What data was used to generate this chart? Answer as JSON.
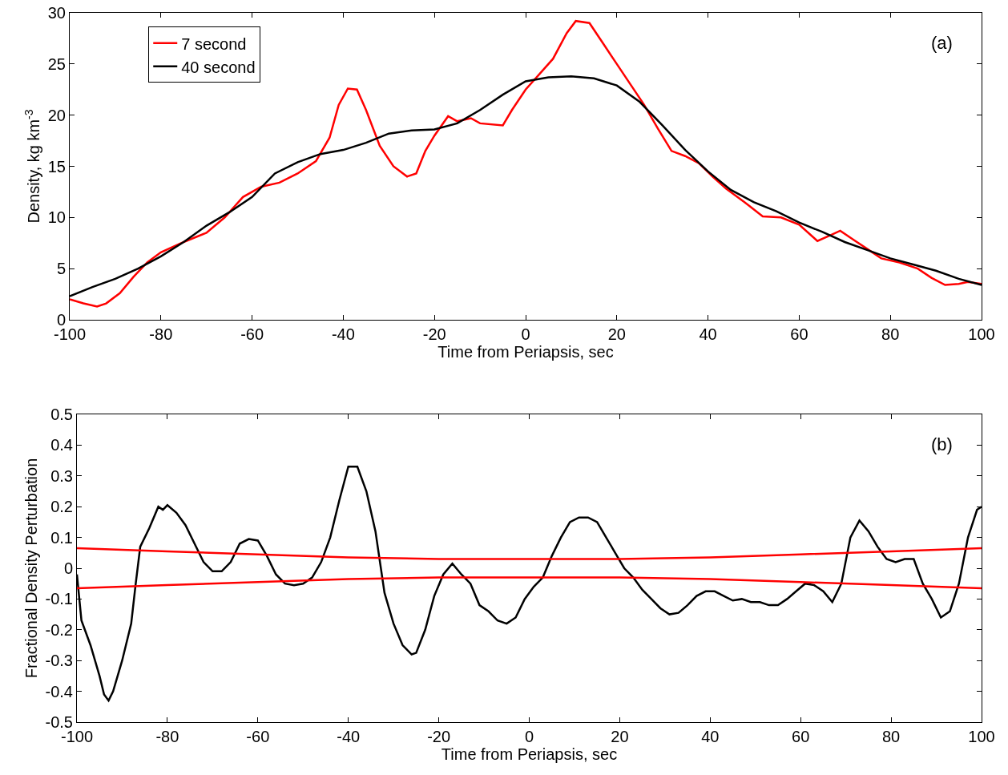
{
  "chart_data": [
    {
      "type": "line",
      "xlabel": "Time from Periapsis, sec",
      "ylabel": "Density, kg km$^{-3}$",
      "xlim": [
        -100,
        100
      ],
      "xticks": [
        -100,
        -80,
        -60,
        -40,
        -20,
        0,
        20,
        40,
        60,
        80,
        100
      ],
      "ylim": [
        0,
        30
      ],
      "yticks": [
        0,
        5,
        10,
        15,
        20,
        25,
        30
      ],
      "legend": "top left",
      "annotations": [
        "(a)"
      ],
      "series": [
        {
          "name": "7 second",
          "color": "#ff0000",
          "x": [
            -100,
            -97,
            -94,
            -92,
            -89,
            -86,
            -83,
            -80,
            -75,
            -70,
            -66,
            -62,
            -58,
            -54,
            -50,
            -46,
            -43,
            -41,
            -39,
            -37,
            -35,
            -32,
            -29,
            -26,
            -24,
            -22,
            -20,
            -17,
            -15,
            -12,
            -10,
            -5,
            -3,
            0,
            3,
            6,
            9,
            11,
            14,
            17,
            20,
            23,
            26,
            29,
            32,
            35,
            38,
            41,
            44,
            48,
            52,
            56,
            60,
            64,
            67,
            69,
            72,
            75,
            78,
            82,
            86,
            89,
            92,
            95,
            97,
            100
          ],
          "values": [
            2.0,
            1.6,
            1.3,
            1.6,
            2.6,
            4.2,
            5.6,
            6.6,
            7.6,
            8.5,
            10,
            12,
            13,
            13.4,
            14.3,
            15.5,
            17.8,
            21,
            22.6,
            22.5,
            20.5,
            17,
            15,
            14,
            14.3,
            16.5,
            18,
            19.9,
            19.4,
            19.7,
            19.2,
            19.0,
            20.5,
            22.5,
            24,
            25.5,
            28,
            29.2,
            29,
            27,
            25,
            23,
            21,
            18.7,
            16.5,
            16,
            15.3,
            14,
            12.8,
            11.5,
            10.1,
            10,
            9.3,
            7.7,
            8.3,
            8.7,
            7.8,
            6.9,
            6.0,
            5.6,
            5.0,
            4.1,
            3.4,
            3.5,
            3.7,
            3.5
          ]
        },
        {
          "name": "40 second",
          "color": "#000000",
          "x": [
            -100,
            -95,
            -90,
            -85,
            -80,
            -75,
            -70,
            -65,
            -60,
            -55,
            -50,
            -45,
            -40,
            -35,
            -30,
            -25,
            -20,
            -15,
            -10,
            -5,
            0,
            5,
            10,
            15,
            20,
            25,
            30,
            35,
            40,
            45,
            50,
            55,
            60,
            65,
            70,
            75,
            80,
            85,
            90,
            95,
            100
          ],
          "values": [
            2.3,
            3.2,
            4.0,
            5.0,
            6.2,
            7.6,
            9.2,
            10.5,
            12.0,
            14.3,
            15.4,
            16.2,
            16.6,
            17.3,
            18.2,
            18.5,
            18.6,
            19.2,
            20.5,
            22.0,
            23.3,
            23.7,
            23.8,
            23.6,
            22.9,
            21.3,
            19.0,
            16.6,
            14.5,
            12.7,
            11.5,
            10.6,
            9.5,
            8.6,
            7.6,
            6.8,
            6.0,
            5.4,
            4.8,
            4.0,
            3.4
          ]
        }
      ]
    },
    {
      "type": "line",
      "xlabel": "Time from Periapsis, sec",
      "ylabel": "Fractional Density Perturbation",
      "xlim": [
        -100,
        100
      ],
      "xticks": [
        -100,
        -80,
        -60,
        -40,
        -20,
        0,
        20,
        40,
        60,
        80,
        100
      ],
      "ylim": [
        -0.5,
        0.5
      ],
      "yticks": [
        -0.5,
        -0.4,
        -0.3,
        -0.2,
        -0.1,
        0,
        0.1,
        0.2,
        0.3,
        0.4,
        0.5
      ],
      "annotations": [
        "(b)"
      ],
      "series": [
        {
          "color": "#000000",
          "x": [
            -100,
            -99,
            -97,
            -95,
            -94,
            -93,
            -92,
            -90,
            -88,
            -87,
            -86,
            -84,
            -82,
            -81,
            -80,
            -78,
            -76,
            -74,
            -72,
            -70,
            -68,
            -66,
            -64,
            -62,
            -60,
            -58,
            -56,
            -54,
            -52,
            -50,
            -48,
            -46,
            -44,
            -42,
            -40,
            -38,
            -36,
            -34,
            -32,
            -30,
            -28,
            -26,
            -25,
            -23,
            -21,
            -19,
            -17,
            -15,
            -13,
            -11,
            -9,
            -7,
            -5,
            -3,
            -1,
            1,
            3,
            5,
            7,
            9,
            11,
            13,
            15,
            17,
            19,
            21,
            23,
            25,
            27,
            29,
            31,
            33,
            35,
            37,
            39,
            41,
            43,
            45,
            47,
            49,
            51,
            53,
            55,
            57,
            59,
            61,
            63,
            65,
            67,
            69,
            71,
            73,
            75,
            77,
            79,
            81,
            83,
            85,
            87,
            89,
            91,
            93,
            95,
            97,
            99,
            100
          ],
          "values": [
            -0.02,
            -0.17,
            -0.25,
            -0.35,
            -0.41,
            -0.43,
            -0.4,
            -0.3,
            -0.18,
            -0.05,
            0.07,
            0.13,
            0.2,
            0.19,
            0.205,
            0.18,
            0.14,
            0.08,
            0.02,
            -0.01,
            -0.01,
            0.02,
            0.08,
            0.095,
            0.09,
            0.04,
            -0.02,
            -0.05,
            -0.055,
            -0.05,
            -0.03,
            0.02,
            0.1,
            0.22,
            0.33,
            0.33,
            0.25,
            0.12,
            -0.08,
            -0.18,
            -0.25,
            -0.28,
            -0.275,
            -0.2,
            -0.09,
            -0.02,
            0.015,
            -0.02,
            -0.05,
            -0.12,
            -0.14,
            -0.17,
            -0.18,
            -0.16,
            -0.1,
            -0.06,
            -0.03,
            0.04,
            0.1,
            0.15,
            0.165,
            0.165,
            0.15,
            0.1,
            0.05,
            0.0,
            -0.03,
            -0.07,
            -0.1,
            -0.13,
            -0.15,
            -0.145,
            -0.12,
            -0.09,
            -0.075,
            -0.075,
            -0.09,
            -0.105,
            -0.1,
            -0.11,
            -0.11,
            -0.12,
            -0.12,
            -0.1,
            -0.075,
            -0.05,
            -0.055,
            -0.075,
            -0.11,
            -0.05,
            0.1,
            0.155,
            0.12,
            0.07,
            0.03,
            0.02,
            0.03,
            0.03,
            -0.05,
            -0.1,
            -0.16,
            -0.14,
            -0.05,
            0.1,
            0.19,
            0.2
          ]
        },
        {
          "color": "#ff0000",
          "x": [
            -100,
            -80,
            -60,
            -40,
            -20,
            0,
            20,
            40,
            60,
            80,
            100
          ],
          "values": [
            0.065,
            0.055,
            0.045,
            0.035,
            0.03,
            0.03,
            0.03,
            0.035,
            0.045,
            0.055,
            0.065
          ]
        },
        {
          "color": "#ff0000",
          "x": [
            -100,
            -80,
            -60,
            -40,
            -20,
            0,
            20,
            40,
            60,
            80,
            100
          ],
          "values": [
            -0.065,
            -0.055,
            -0.045,
            -0.035,
            -0.03,
            -0.03,
            -0.03,
            -0.035,
            -0.045,
            -0.055,
            -0.065
          ]
        }
      ]
    }
  ]
}
